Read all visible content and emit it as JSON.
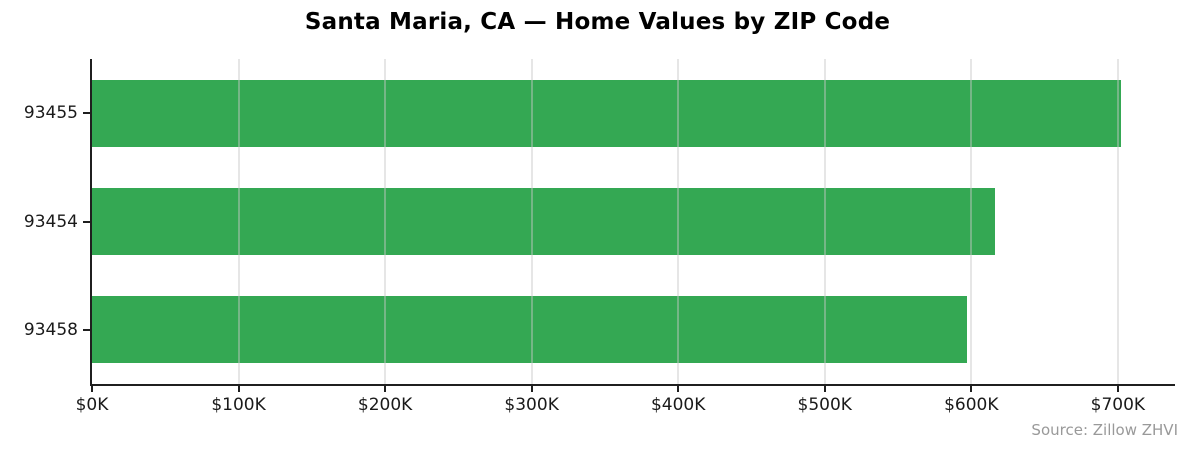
{
  "title": "Santa Maria, CA — Home Values by ZIP Code",
  "source_note": "Source: Zillow ZHVI",
  "colors": {
    "bar": "#34a853",
    "axis": "#1f1f1f",
    "grid": "#e8e8e8",
    "tick_text": "#1a1a1a",
    "muted_text": "#999999",
    "background": "#ffffff"
  },
  "chart_data": {
    "type": "bar",
    "orientation": "horizontal",
    "title": "Santa Maria, CA — Home Values by ZIP Code",
    "categories": [
      "93455",
      "93454",
      "93458"
    ],
    "values": [
      702000,
      616000,
      597000
    ],
    "xlabel": "",
    "ylabel": "",
    "xlim": [
      0,
      739000
    ],
    "xticks": [
      {
        "value": 0,
        "label": "$0K"
      },
      {
        "value": 100000,
        "label": "$100K"
      },
      {
        "value": 200000,
        "label": "$200K"
      },
      {
        "value": 300000,
        "label": "$300K"
      },
      {
        "value": 400000,
        "label": "$400K"
      },
      {
        "value": 500000,
        "label": "$500K"
      },
      {
        "value": 600000,
        "label": "$600K"
      },
      {
        "value": 700000,
        "label": "$700K"
      }
    ],
    "grid": "x",
    "grid_over_bars": true,
    "legend": "none",
    "source": "Source: Zillow ZHVI"
  }
}
